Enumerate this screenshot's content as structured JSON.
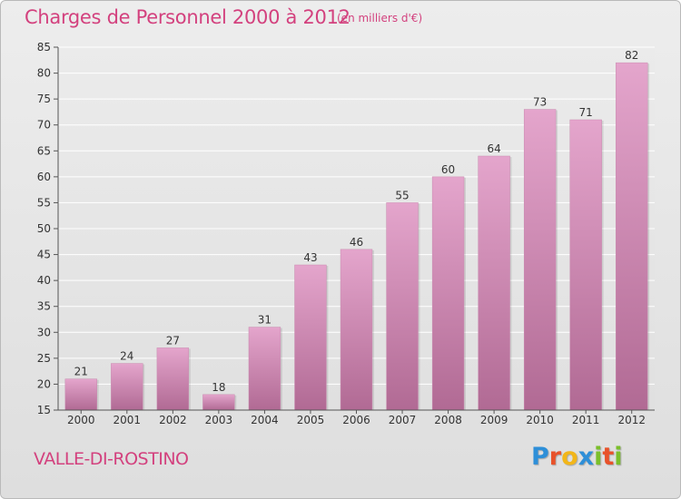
{
  "header": {
    "title": "Charges de Personnel 2000 à 2012",
    "subtitle": "(en milliers d'€)"
  },
  "footer": {
    "commune": "VALLE-DI-ROSTINO",
    "logo_letters": [
      {
        "char": "P",
        "color": "#2e8fd8"
      },
      {
        "char": "r",
        "color": "#e8522a"
      },
      {
        "char": "o",
        "color": "#f2b619"
      },
      {
        "char": "x",
        "color": "#2e8fd8"
      },
      {
        "char": "i",
        "color": "#7bbf2a"
      },
      {
        "char": "t",
        "color": "#e8522a"
      },
      {
        "char": "i",
        "color": "#7bbf2a"
      }
    ]
  },
  "colors": {
    "bar_top": "#e4a5cc",
    "bar_bottom": "#b16a94",
    "accent": "#d3417e"
  },
  "chart_data": {
    "type": "bar",
    "categories": [
      "2000",
      "2001",
      "2002",
      "2003",
      "2004",
      "2005",
      "2006",
      "2007",
      "2008",
      "2009",
      "2010",
      "2011",
      "2012"
    ],
    "values": [
      21,
      24,
      27,
      18,
      31,
      43,
      46,
      55,
      60,
      64,
      73,
      71,
      82
    ],
    "ylim": [
      15,
      85
    ],
    "yticks": [
      15,
      20,
      25,
      30,
      35,
      40,
      45,
      50,
      55,
      60,
      65,
      70,
      75,
      80,
      85
    ],
    "grid": true,
    "legend": "none"
  }
}
